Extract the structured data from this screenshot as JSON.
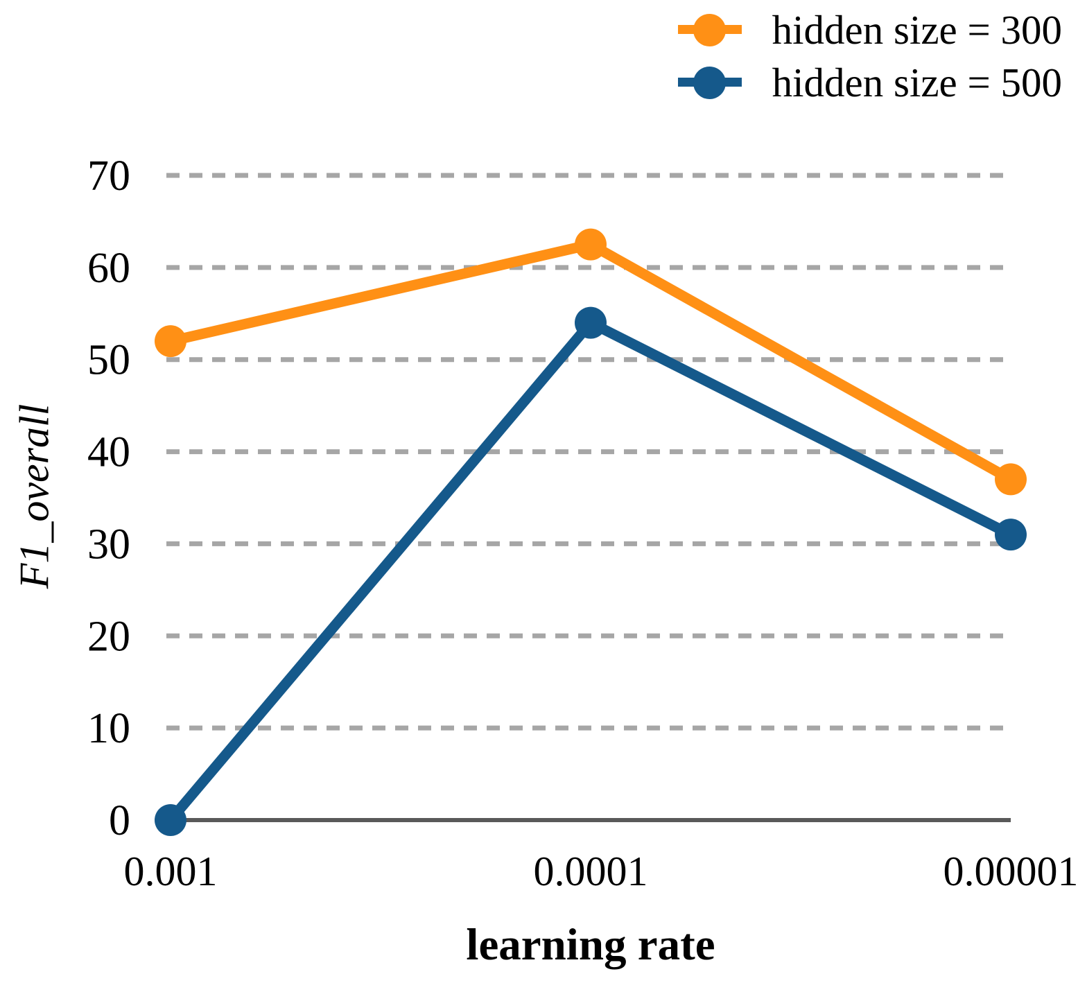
{
  "chart_data": {
    "type": "line",
    "title": "",
    "xlabel": "learning rate",
    "ylabel": "F1_overall",
    "x_categories": [
      "0.001",
      "0.0001",
      "0.00001"
    ],
    "series": [
      {
        "name": "hidden size = 300",
        "color": "#FF9015",
        "values": [
          52,
          62.5,
          37
        ]
      },
      {
        "name": "hidden size = 500",
        "color": "#15598B",
        "values": [
          0,
          54,
          31
        ]
      }
    ],
    "yticks": [
      0,
      10,
      20,
      30,
      40,
      50,
      60,
      70
    ],
    "ylim": [
      0,
      70
    ],
    "grid": "horizontal-dashed",
    "legend_position": "top-right",
    "colors": {
      "gridline": "#A6A6A6",
      "axis": "#595959",
      "text": "#000000"
    }
  }
}
